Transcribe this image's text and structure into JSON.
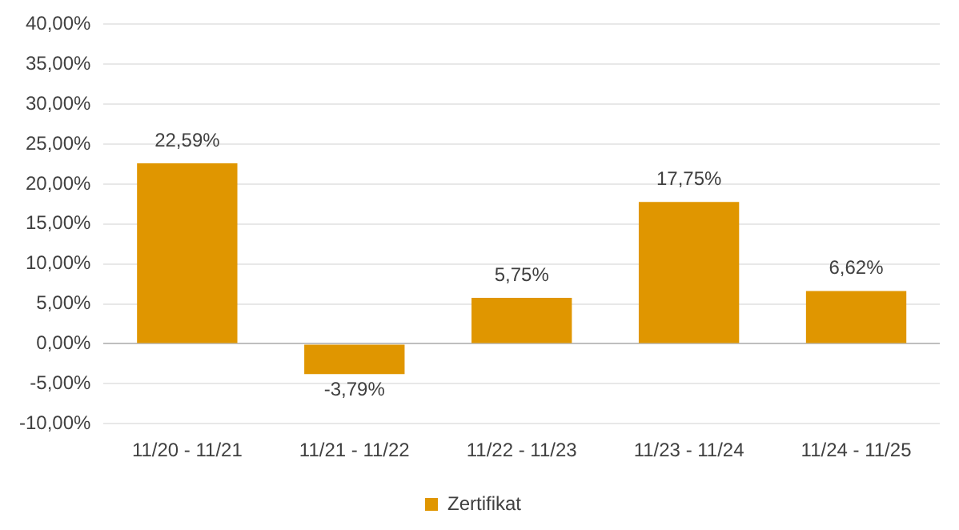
{
  "chart_data": {
    "type": "bar",
    "categories": [
      "11/20 - 11/21",
      "11/21 - 11/22",
      "11/22 - 11/23",
      "11/23 - 11/24",
      "11/24 - 11/25"
    ],
    "series": [
      {
        "name": "Zertifikat",
        "color": "#e09600",
        "values": [
          22.59,
          -3.79,
          5.75,
          17.75,
          6.62
        ],
        "value_labels": [
          "22,59%",
          "-3,79%",
          "5,75%",
          "17,75%",
          "6,62%"
        ]
      }
    ],
    "ylim": [
      -10,
      40
    ],
    "yticks": [
      {
        "value": -10,
        "label": "-10,00%"
      },
      {
        "value": -5,
        "label": "-5,00%"
      },
      {
        "value": 0,
        "label": "0,00%"
      },
      {
        "value": 5,
        "label": "5,00%"
      },
      {
        "value": 10,
        "label": "10,00%"
      },
      {
        "value": 15,
        "label": "15,00%"
      },
      {
        "value": 20,
        "label": "20,00%"
      },
      {
        "value": 25,
        "label": "25,00%"
      },
      {
        "value": 30,
        "label": "30,00%"
      },
      {
        "value": 35,
        "label": "35,00%"
      },
      {
        "value": 40,
        "label": "40,00%"
      }
    ],
    "grid": "y",
    "legend": "bottom"
  }
}
